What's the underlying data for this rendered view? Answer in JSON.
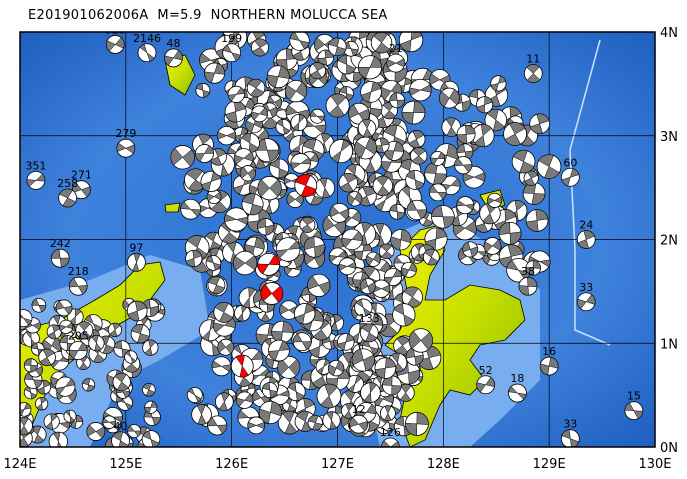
{
  "title": "E201901062006A  M=5.9  NORTHERN MOLUCCA SEA",
  "map": {
    "lon_range": [
      124,
      130
    ],
    "lat_range": [
      0,
      4
    ],
    "x_ticks": [
      "124E",
      "125E",
      "126E",
      "127E",
      "128E",
      "129E",
      "130E"
    ],
    "y_ticks": [
      "0N",
      "1N",
      "2N",
      "3N",
      "4N"
    ],
    "colors": {
      "ocean_deep": "#1f5fc0",
      "ocean_shallow": "#6fa3e6",
      "land_low": "#f4f000",
      "land_high": "#8cb800",
      "mechanism_fill": "#808080",
      "highlight": "#ff0000"
    },
    "grid": true
  },
  "mechanisms": [
    {
      "label": "325",
      "lon": 124.9,
      "lat": 3.88
    },
    {
      "label": "2146",
      "lon": 125.2,
      "lat": 3.8
    },
    {
      "label": "48",
      "lon": 125.45,
      "lat": 3.75
    },
    {
      "label": "199",
      "lon": 126.0,
      "lat": 3.8
    },
    {
      "label": "21",
      "lon": 127.55,
      "lat": 3.7
    },
    {
      "label": "11",
      "lon": 128.85,
      "lat": 3.6
    },
    {
      "label": "351",
      "lon": 124.15,
      "lat": 2.57
    },
    {
      "label": "279",
      "lon": 125.0,
      "lat": 2.88
    },
    {
      "label": "271",
      "lon": 124.58,
      "lat": 2.48
    },
    {
      "label": "258",
      "lon": 124.45,
      "lat": 2.4
    },
    {
      "label": "242",
      "lon": 124.38,
      "lat": 1.82
    },
    {
      "label": "97",
      "lon": 125.1,
      "lat": 1.78
    },
    {
      "label": "218",
      "lon": 124.55,
      "lat": 1.55
    },
    {
      "label": "205",
      "lon": 124.55,
      "lat": 0.93
    },
    {
      "label": "60",
      "lon": 129.2,
      "lat": 2.6
    },
    {
      "label": "24",
      "lon": 129.35,
      "lat": 2.0
    },
    {
      "label": "38",
      "lon": 128.8,
      "lat": 1.55
    },
    {
      "label": "33",
      "lon": 129.35,
      "lat": 1.4
    },
    {
      "label": "16",
      "lon": 129.0,
      "lat": 0.78
    },
    {
      "label": "18",
      "lon": 128.7,
      "lat": 0.52
    },
    {
      "label": "52",
      "lon": 128.4,
      "lat": 0.6
    },
    {
      "label": "33",
      "lon": 129.2,
      "lat": 0.08
    },
    {
      "label": "15",
      "lon": 129.8,
      "lat": 0.35
    },
    {
      "label": "40",
      "lon": 124.95,
      "lat": 0.06
    },
    {
      "label": "126",
      "lon": 127.5,
      "lat": 0.0
    },
    {
      "label": "12",
      "lon": 127.2,
      "lat": 0.22
    },
    {
      "label": "133",
      "lon": 127.3,
      "lat": 1.1
    }
  ],
  "highlighted": [
    {
      "lon": 126.7,
      "lat": 2.52
    },
    {
      "lon": 126.35,
      "lat": 1.76
    },
    {
      "lon": 126.38,
      "lat": 1.48
    },
    {
      "lon": 126.1,
      "lat": 0.78
    }
  ]
}
